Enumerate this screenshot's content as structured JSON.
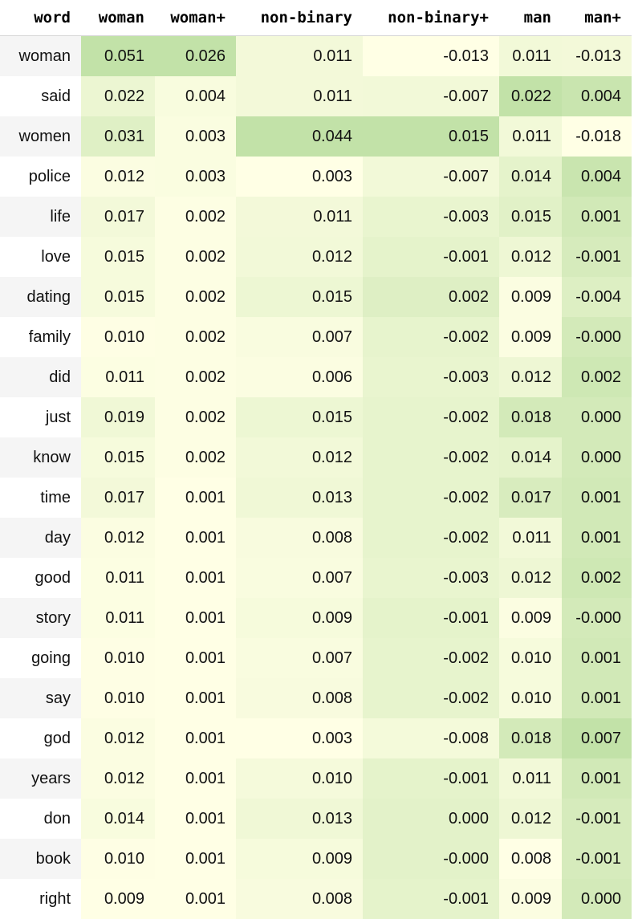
{
  "table": {
    "columns": [
      "word",
      "woman",
      "woman+",
      "non-binary",
      "non-binary+",
      "man",
      "man+"
    ],
    "rows": [
      {
        "word": "woman",
        "values": [
          "0.051",
          "0.026",
          "0.011",
          "-0.013",
          "0.011",
          "-0.013"
        ]
      },
      {
        "word": "said",
        "values": [
          "0.022",
          "0.004",
          "0.011",
          "-0.007",
          "0.022",
          "0.004"
        ]
      },
      {
        "word": "women",
        "values": [
          "0.031",
          "0.003",
          "0.044",
          "0.015",
          "0.011",
          "-0.018"
        ]
      },
      {
        "word": "police",
        "values": [
          "0.012",
          "0.003",
          "0.003",
          "-0.007",
          "0.014",
          "0.004"
        ]
      },
      {
        "word": "life",
        "values": [
          "0.017",
          "0.002",
          "0.011",
          "-0.003",
          "0.015",
          "0.001"
        ]
      },
      {
        "word": "love",
        "values": [
          "0.015",
          "0.002",
          "0.012",
          "-0.001",
          "0.012",
          "-0.001"
        ]
      },
      {
        "word": "dating",
        "values": [
          "0.015",
          "0.002",
          "0.015",
          "0.002",
          "0.009",
          "-0.004"
        ]
      },
      {
        "word": "family",
        "values": [
          "0.010",
          "0.002",
          "0.007",
          "-0.002",
          "0.009",
          "-0.000"
        ]
      },
      {
        "word": "did",
        "values": [
          "0.011",
          "0.002",
          "0.006",
          "-0.003",
          "0.012",
          "0.002"
        ]
      },
      {
        "word": "just",
        "values": [
          "0.019",
          "0.002",
          "0.015",
          "-0.002",
          "0.018",
          "0.000"
        ]
      },
      {
        "word": "know",
        "values": [
          "0.015",
          "0.002",
          "0.012",
          "-0.002",
          "0.014",
          "0.000"
        ]
      },
      {
        "word": "time",
        "values": [
          "0.017",
          "0.001",
          "0.013",
          "-0.002",
          "0.017",
          "0.001"
        ]
      },
      {
        "word": "day",
        "values": [
          "0.012",
          "0.001",
          "0.008",
          "-0.002",
          "0.011",
          "0.001"
        ]
      },
      {
        "word": "good",
        "values": [
          "0.011",
          "0.001",
          "0.007",
          "-0.003",
          "0.012",
          "0.002"
        ]
      },
      {
        "word": "story",
        "values": [
          "0.011",
          "0.001",
          "0.009",
          "-0.001",
          "0.009",
          "-0.000"
        ]
      },
      {
        "word": "going",
        "values": [
          "0.010",
          "0.001",
          "0.007",
          "-0.002",
          "0.010",
          "0.001"
        ]
      },
      {
        "word": "say",
        "values": [
          "0.010",
          "0.001",
          "0.008",
          "-0.002",
          "0.010",
          "0.001"
        ]
      },
      {
        "word": "god",
        "values": [
          "0.012",
          "0.001",
          "0.003",
          "-0.008",
          "0.018",
          "0.007"
        ]
      },
      {
        "word": "years",
        "values": [
          "0.012",
          "0.001",
          "0.010",
          "-0.001",
          "0.011",
          "0.001"
        ]
      },
      {
        "word": "don",
        "values": [
          "0.014",
          "0.001",
          "0.013",
          "0.000",
          "0.012",
          "-0.001"
        ]
      },
      {
        "word": "book",
        "values": [
          "0.010",
          "0.001",
          "0.009",
          "-0.000",
          "0.008",
          "-0.001"
        ]
      },
      {
        "word": "right",
        "values": [
          "0.009",
          "0.001",
          "0.008",
          "-0.001",
          "0.009",
          "0.000"
        ]
      }
    ]
  },
  "colors": {
    "heat_low": "#ffffe5",
    "heat_high": "#c2e2a8",
    "alt_row_word": "#f5f5f5"
  }
}
